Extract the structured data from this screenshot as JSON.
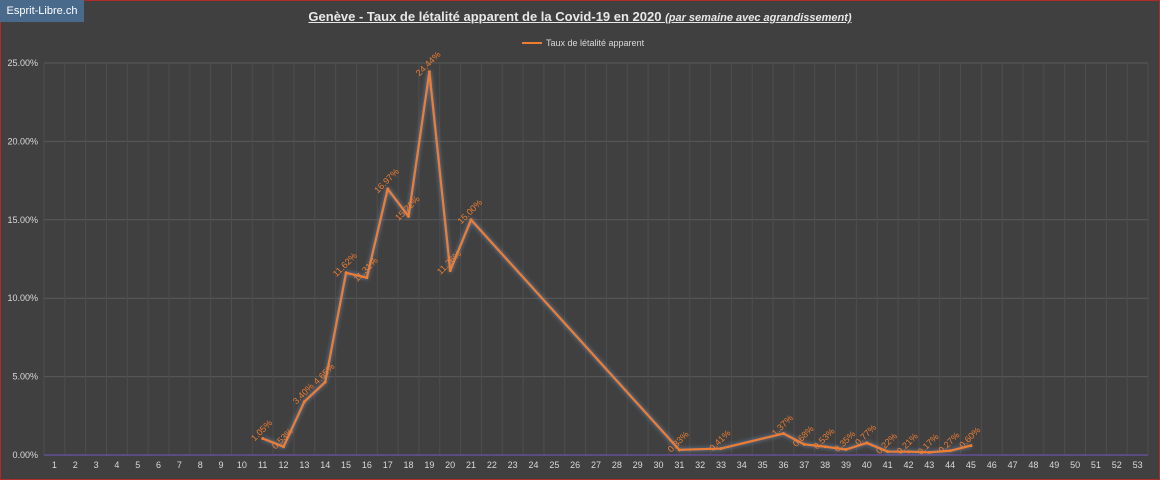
{
  "badge": {
    "text": "Esprit-Libre.ch"
  },
  "chart_data": {
    "type": "line",
    "title": "Genève - Taux de létalité apparent de la Covid-19 en 2020",
    "subtitle": "(par semaine avec agrandissement)",
    "legend_position": "top",
    "grid": true,
    "ylim": [
      0,
      25
    ],
    "yticks": [
      "0.00%",
      "5.00%",
      "10.00%",
      "15.00%",
      "20.00%",
      "25.00%"
    ],
    "categories": [
      "1",
      "2",
      "3",
      "4",
      "5",
      "6",
      "7",
      "8",
      "9",
      "10",
      "11",
      "12",
      "13",
      "14",
      "15",
      "16",
      "17",
      "18",
      "19",
      "20",
      "21",
      "22",
      "23",
      "24",
      "25",
      "26",
      "27",
      "28",
      "29",
      "30",
      "31",
      "32",
      "33",
      "34",
      "35",
      "36",
      "37",
      "38",
      "39",
      "40",
      "41",
      "42",
      "43",
      "44",
      "45",
      "46",
      "47",
      "48",
      "49",
      "50",
      "51",
      "52",
      "53"
    ],
    "series": [
      {
        "name": "Taux de létalité apparent",
        "color": "#ed7d31",
        "points": [
          {
            "x": 11,
            "y": 1.05,
            "label": "1.05%"
          },
          {
            "x": 12,
            "y": 0.53,
            "label": "0.53%"
          },
          {
            "x": 13,
            "y": 3.4,
            "label": "3.40%"
          },
          {
            "x": 14,
            "y": 4.65,
            "label": "4.65%"
          },
          {
            "x": 15,
            "y": 11.62,
            "label": "11.62%"
          },
          {
            "x": 16,
            "y": 11.31,
            "label": "11.31%"
          },
          {
            "x": 17,
            "y": 16.97,
            "label": "16.97%"
          },
          {
            "x": 18,
            "y": 15.22,
            "label": "15.22%"
          },
          {
            "x": 19,
            "y": 24.44,
            "label": "24.44%"
          },
          {
            "x": 20,
            "y": 11.76,
            "label": "11.76%"
          },
          {
            "x": 21,
            "y": 15.0,
            "label": "15.00%"
          },
          {
            "x": 31,
            "y": 0.33,
            "label": "0.33%"
          },
          {
            "x": 33,
            "y": 0.41,
            "label": "0.41%"
          },
          {
            "x": 36,
            "y": 1.37,
            "label": "1.37%"
          },
          {
            "x": 37,
            "y": 0.68,
            "label": "0.68%"
          },
          {
            "x": 38,
            "y": 0.53,
            "label": "0.53%"
          },
          {
            "x": 39,
            "y": 0.35,
            "label": "0.35%"
          },
          {
            "x": 40,
            "y": 0.77,
            "label": "0.77%"
          },
          {
            "x": 41,
            "y": 0.22,
            "label": "0.22%"
          },
          {
            "x": 42,
            "y": 0.21,
            "label": "0.21%"
          },
          {
            "x": 43,
            "y": 0.17,
            "label": "0.17%"
          },
          {
            "x": 44,
            "y": 0.27,
            "label": "0.27%"
          },
          {
            "x": 45,
            "y": 0.6,
            "label": "0.60%"
          }
        ]
      }
    ]
  }
}
